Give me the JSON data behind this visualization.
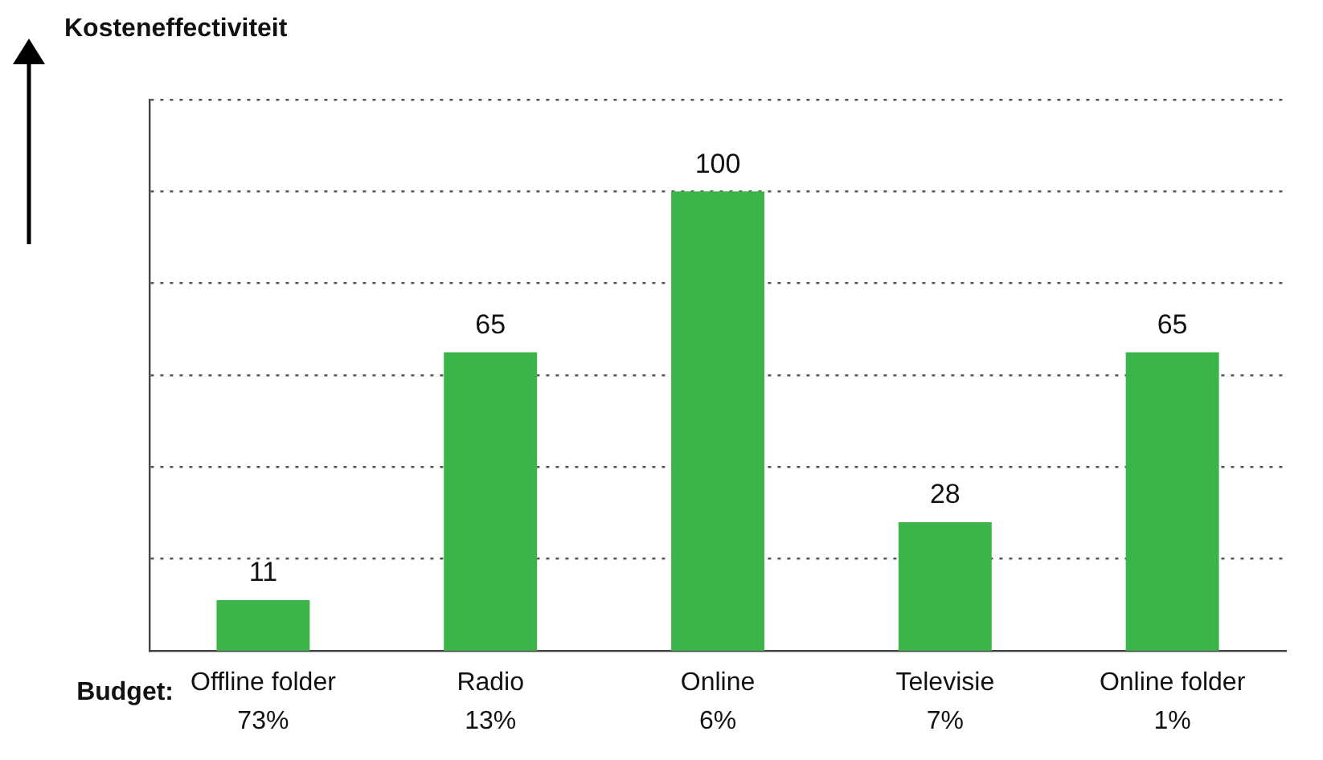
{
  "chart_data": {
    "type": "bar",
    "ylabel": "Kosteneffectiviteit",
    "categories": [
      "Offline folder\n73%",
      "Radio\n13%",
      "Online\n6%",
      "Televisie\n7%",
      "Online folder\n1%"
    ],
    "values": [
      11,
      65,
      100,
      28,
      65
    ],
    "color": "#3bb54a",
    "data_labels": true,
    "ylim": [
      0,
      120
    ],
    "yticks": [
      {
        "value": 20,
        "label": null
      },
      {
        "value": 40,
        "label": null
      },
      {
        "value": 60,
        "label": null
      },
      {
        "value": 80,
        "label": null
      },
      {
        "value": 100,
        "label": null
      },
      {
        "value": 120,
        "label": null
      }
    ],
    "grid": "y",
    "tick_labels": "x",
    "legend": false,
    "annotations": [
      "Budget:"
    ]
  }
}
